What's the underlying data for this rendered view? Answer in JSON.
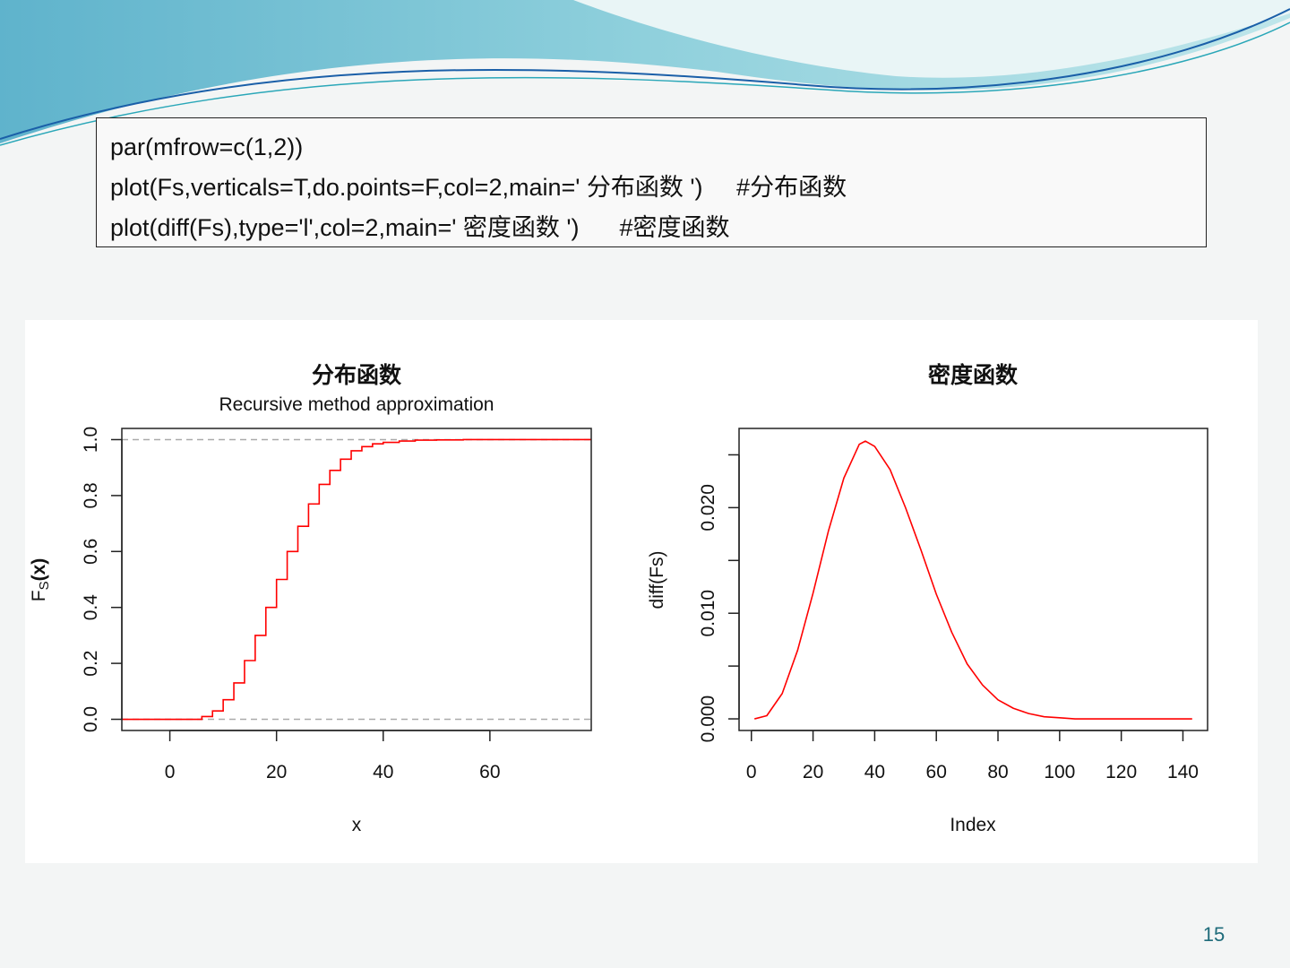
{
  "code": {
    "lines": [
      "par(mfrow=c(1,2))",
      "plot(Fs,verticals=T,do.points=F,col=2,main=' 分布函数 ')     #分布函数",
      "plot(diff(Fs),type='l',col=2,main=' 密度函数 ')      #密度函数"
    ]
  },
  "page": {
    "number": "15"
  },
  "colors": {
    "series": "#ff0000",
    "reference_lines": "#aaaaaa",
    "accent": "#1e6b7a"
  },
  "chart_data": [
    {
      "type": "line",
      "step": true,
      "title": "分布函数",
      "subtitle": "Recursive method approximation",
      "xlabel": "x",
      "ylabel": "Fs(x)",
      "ylabel_main": "F",
      "ylabel_sub": "S",
      "ylabel_tail": "(x)",
      "xlim": [
        -9,
        79
      ],
      "ylim": [
        -0.04,
        1.04
      ],
      "xticks": [
        0,
        20,
        40,
        60
      ],
      "yticks": [
        "0.0",
        "0.2",
        "0.4",
        "0.6",
        "0.8",
        "1.0"
      ],
      "hlines": [
        0,
        1
      ],
      "series": [
        {
          "color": "#ff0000",
          "x": [
            -9,
            4,
            6,
            8,
            10,
            12,
            14,
            16,
            18,
            20,
            22,
            24,
            26,
            28,
            30,
            32,
            34,
            36,
            38,
            40,
            43,
            46,
            50,
            55,
            79
          ],
          "y": [
            0,
            0,
            0.01,
            0.03,
            0.07,
            0.13,
            0.21,
            0.3,
            0.4,
            0.5,
            0.6,
            0.69,
            0.77,
            0.84,
            0.89,
            0.93,
            0.96,
            0.975,
            0.985,
            0.99,
            0.995,
            0.998,
            0.999,
            1.0,
            1.0
          ]
        }
      ]
    },
    {
      "type": "line",
      "title": "密度函数",
      "xlabel": "Index",
      "ylabel": "diff(Fs)",
      "xlim": [
        -4,
        148
      ],
      "ylim": [
        -0.0011,
        0.0275
      ],
      "xticks": [
        0,
        20,
        40,
        60,
        80,
        100,
        120,
        140
      ],
      "yticks": [
        {
          "value": 0.0,
          "label": "0.000"
        },
        {
          "value": 0.005,
          "label": ""
        },
        {
          "value": 0.01,
          "label": "0.010"
        },
        {
          "value": 0.015,
          "label": ""
        },
        {
          "value": 0.02,
          "label": "0.020"
        },
        {
          "value": 0.025,
          "label": ""
        }
      ],
      "series": [
        {
          "color": "#ff0000",
          "x": [
            1,
            5,
            10,
            15,
            20,
            25,
            30,
            35,
            37,
            40,
            45,
            50,
            55,
            60,
            65,
            70,
            75,
            80,
            85,
            90,
            95,
            100,
            105,
            110,
            120,
            130,
            143
          ],
          "y": [
            0.0,
            0.0003,
            0.0024,
            0.0065,
            0.0119,
            0.0178,
            0.0228,
            0.026,
            0.0263,
            0.0258,
            0.0236,
            0.02,
            0.016,
            0.0118,
            0.0082,
            0.0052,
            0.0032,
            0.0018,
            0.001,
            0.0005,
            0.0002,
            0.0001,
            0.0,
            0.0,
            0.0,
            0.0,
            0.0
          ]
        }
      ]
    }
  ]
}
